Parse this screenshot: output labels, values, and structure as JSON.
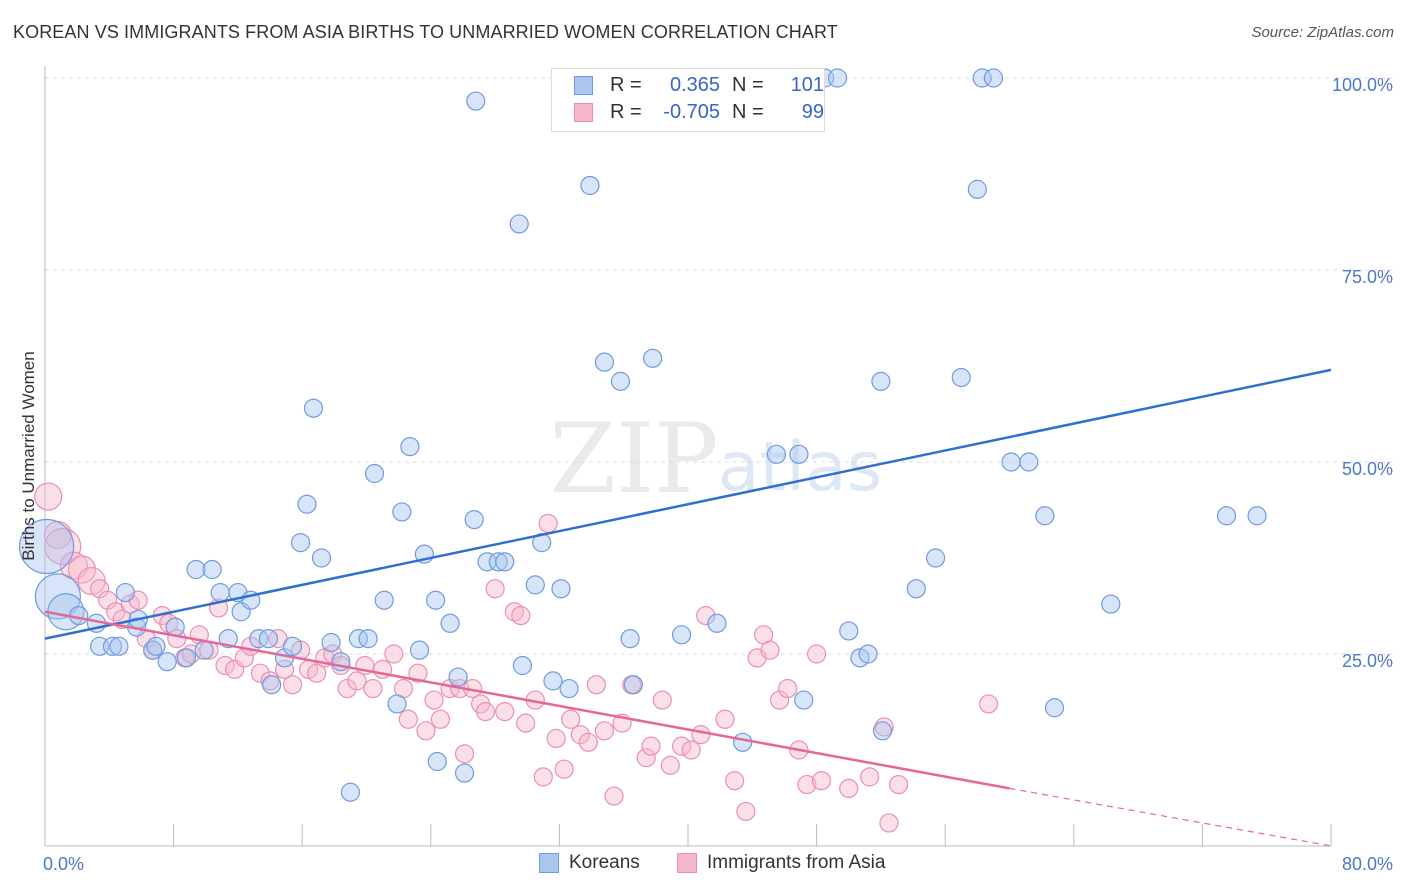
{
  "title": "KOREAN VS IMMIGRANTS FROM ASIA BIRTHS TO UNMARRIED WOMEN CORRELATION CHART",
  "source": "Source: ZipAtlas.com",
  "watermark": {
    "zip": "ZIP",
    "atlas": "atlas"
  },
  "colors": {
    "koreans_fill": "#a9c6f0",
    "koreans_stroke": "#6f9be0",
    "koreans_line": "#2f6fcf",
    "asia_fill": "#f6b9cc",
    "asia_stroke": "#ec8fb0",
    "asia_line": "#e5679a",
    "tick_label": "#4a78c9",
    "grid": "#dddddd"
  },
  "legend_top": [
    {
      "swatch": "koreans",
      "r_label": "R =",
      "r_value": "0.365",
      "n_label": "N =",
      "n_value": "101"
    },
    {
      "swatch": "asia",
      "r_label": "R =",
      "r_value": "-0.705",
      "n_label": "N =",
      "n_value": "99"
    }
  ],
  "legend_bottom": [
    {
      "swatch": "koreans",
      "label": "Koreans"
    },
    {
      "swatch": "asia",
      "label": "Immigrants from Asia"
    }
  ],
  "chart_data": {
    "type": "scatter",
    "title": "KOREAN VS IMMIGRANTS FROM ASIA BIRTHS TO UNMARRIED WOMEN CORRELATION CHART",
    "xlabel": "",
    "ylabel": "Births to Unmarried Women",
    "xlim": [
      0,
      80
    ],
    "ylim": [
      0,
      100
    ],
    "x_tick_labels": [
      "0.0%",
      "80.0%"
    ],
    "y_tick_values": [
      25,
      50,
      75,
      100
    ],
    "y_tick_labels": [
      "25.0%",
      "50.0%",
      "75.0%",
      "100.0%"
    ],
    "grid": "horizontal dashed",
    "legend_placement": "top-center",
    "series": [
      {
        "name": "Koreans",
        "color": "#a9c6f0",
        "trend": {
          "x": [
            0,
            80
          ],
          "y": [
            27.0,
            62.0
          ]
        },
        "points": [
          [
            0.1,
            39.0,
            3
          ],
          [
            0.8,
            32.5,
            2.5
          ],
          [
            1.3,
            30.5,
            2
          ],
          [
            2.1,
            30.0,
            1
          ],
          [
            3.2,
            29.0,
            1
          ],
          [
            3.4,
            26.0,
            1
          ],
          [
            4.2,
            26.0,
            1
          ],
          [
            4.6,
            26.0,
            1
          ],
          [
            5.0,
            33.0,
            1
          ],
          [
            5.7,
            28.5,
            1
          ],
          [
            5.8,
            29.5,
            1
          ],
          [
            6.7,
            25.5,
            1
          ],
          [
            6.9,
            26.0,
            1
          ],
          [
            7.6,
            24.0,
            1
          ],
          [
            8.1,
            28.5,
            1
          ],
          [
            8.8,
            24.5,
            1
          ],
          [
            9.4,
            36.0,
            1
          ],
          [
            9.9,
            25.5,
            1
          ],
          [
            10.4,
            36.0,
            1
          ],
          [
            10.9,
            33.0,
            1
          ],
          [
            11.4,
            27.0,
            1
          ],
          [
            12.0,
            33.0,
            1
          ],
          [
            12.2,
            30.5,
            1
          ],
          [
            12.8,
            32.0,
            1
          ],
          [
            13.3,
            27.0,
            1
          ],
          [
            13.9,
            27.0,
            1
          ],
          [
            14.1,
            21.0,
            1
          ],
          [
            14.9,
            24.5,
            1
          ],
          [
            15.4,
            26.0,
            1
          ],
          [
            15.9,
            39.5,
            1
          ],
          [
            16.3,
            44.5,
            1
          ],
          [
            16.7,
            57.0,
            1
          ],
          [
            17.2,
            37.5,
            1
          ],
          [
            17.8,
            26.5,
            1
          ],
          [
            18.4,
            24.0,
            1
          ],
          [
            19.0,
            7.0,
            1
          ],
          [
            19.5,
            27.0,
            1
          ],
          [
            20.1,
            27.0,
            1
          ],
          [
            20.5,
            48.5,
            1
          ],
          [
            21.1,
            32.0,
            1
          ],
          [
            21.9,
            18.5,
            1
          ],
          [
            22.2,
            43.5,
            1
          ],
          [
            22.7,
            52.0,
            1
          ],
          [
            23.3,
            25.5,
            1
          ],
          [
            23.6,
            38.0,
            1
          ],
          [
            24.3,
            32.0,
            1
          ],
          [
            24.4,
            11.0,
            1
          ],
          [
            25.2,
            29.0,
            1
          ],
          [
            25.7,
            22.0,
            1
          ],
          [
            26.1,
            9.5,
            1
          ],
          [
            26.7,
            42.5,
            1
          ],
          [
            26.8,
            97.0,
            1
          ],
          [
            27.5,
            37.0,
            1
          ],
          [
            28.2,
            37.0,
            1
          ],
          [
            28.6,
            37.0,
            1
          ],
          [
            29.5,
            81.0,
            1
          ],
          [
            29.7,
            23.5,
            1
          ],
          [
            30.5,
            34.0,
            1
          ],
          [
            30.9,
            39.5,
            1
          ],
          [
            31.6,
            21.5,
            1
          ],
          [
            32.1,
            33.5,
            1
          ],
          [
            32.6,
            20.5,
            1
          ],
          [
            33.9,
            86.0,
            1
          ],
          [
            34.8,
            63.0,
            1
          ],
          [
            35.8,
            60.5,
            1
          ],
          [
            36.4,
            27.0,
            1
          ],
          [
            36.6,
            21.0,
            1
          ],
          [
            37.8,
            63.5,
            1
          ],
          [
            38.7,
            100.0,
            1
          ],
          [
            39.6,
            27.5,
            1
          ],
          [
            41.8,
            29.0,
            1
          ],
          [
            43.4,
            13.5,
            1
          ],
          [
            45.5,
            51.0,
            1
          ],
          [
            46.9,
            51.0,
            1
          ],
          [
            47.2,
            19.0,
            1
          ],
          [
            48.5,
            100.0,
            1
          ],
          [
            49.3,
            100.0,
            1
          ],
          [
            50.0,
            28.0,
            1
          ],
          [
            50.7,
            24.5,
            1
          ],
          [
            51.2,
            25.0,
            1
          ],
          [
            52.0,
            60.5,
            1
          ],
          [
            54.2,
            33.5,
            1
          ],
          [
            55.4,
            37.5,
            1
          ],
          [
            57.0,
            61.0,
            1
          ],
          [
            58.0,
            85.5,
            1
          ],
          [
            58.3,
            100.0,
            1
          ],
          [
            59.0,
            100.0,
            1
          ],
          [
            60.1,
            50.0,
            1
          ],
          [
            61.2,
            50.0,
            1
          ],
          [
            62.2,
            43.0,
            1
          ],
          [
            62.8,
            18.0,
            1
          ],
          [
            66.3,
            31.5,
            1
          ],
          [
            73.5,
            43.0,
            1
          ],
          [
            75.4,
            43.0,
            1
          ],
          [
            52.1,
            15.0,
            1
          ],
          [
            36.8,
            100.0,
            1
          ]
        ]
      },
      {
        "name": "Immigrants from Asia",
        "color": "#f6b9cc",
        "trend": {
          "x": [
            0,
            60
          ],
          "y": [
            30.5,
            7.5
          ]
        },
        "trend_dashed": {
          "x": [
            60,
            80
          ],
          "y": [
            7.5,
            0
          ]
        },
        "points": [
          [
            0.2,
            45.5,
            1.5
          ],
          [
            0.8,
            40.5,
            1.5
          ],
          [
            1.1,
            39.0,
            2
          ],
          [
            1.8,
            36.5,
            1.5
          ],
          [
            2.3,
            36.0,
            1.5
          ],
          [
            2.9,
            34.5,
            1.5
          ],
          [
            3.4,
            33.5,
            1
          ],
          [
            3.9,
            32.0,
            1
          ],
          [
            4.4,
            30.5,
            1
          ],
          [
            4.8,
            29.5,
            1
          ],
          [
            5.3,
            31.5,
            1
          ],
          [
            5.8,
            32.0,
            1
          ],
          [
            6.3,
            27.0,
            1
          ],
          [
            6.7,
            25.5,
            1
          ],
          [
            7.3,
            30.0,
            1
          ],
          [
            7.7,
            29.0,
            1
          ],
          [
            8.2,
            27.0,
            1
          ],
          [
            8.7,
            24.5,
            1
          ],
          [
            9.1,
            25.0,
            1
          ],
          [
            9.6,
            27.5,
            1
          ],
          [
            10.2,
            25.5,
            1
          ],
          [
            10.8,
            31.0,
            1
          ],
          [
            11.2,
            23.5,
            1
          ],
          [
            11.8,
            23.0,
            1
          ],
          [
            12.4,
            24.5,
            1
          ],
          [
            12.8,
            26.0,
            1
          ],
          [
            13.4,
            22.5,
            1
          ],
          [
            14.0,
            21.5,
            1
          ],
          [
            14.5,
            27.0,
            1
          ],
          [
            14.9,
            23.0,
            1
          ],
          [
            15.4,
            21.0,
            1
          ],
          [
            15.9,
            25.5,
            1
          ],
          [
            16.4,
            23.0,
            1
          ],
          [
            16.9,
            22.5,
            1
          ],
          [
            17.4,
            24.5,
            1
          ],
          [
            17.9,
            25.0,
            1
          ],
          [
            18.4,
            23.5,
            1
          ],
          [
            18.8,
            20.5,
            1
          ],
          [
            19.4,
            21.5,
            1
          ],
          [
            19.9,
            23.5,
            1
          ],
          [
            20.4,
            20.5,
            1
          ],
          [
            21.0,
            23.0,
            1
          ],
          [
            21.7,
            25.0,
            1
          ],
          [
            22.3,
            20.5,
            1
          ],
          [
            22.6,
            16.5,
            1
          ],
          [
            23.2,
            22.5,
            1
          ],
          [
            23.7,
            15.0,
            1
          ],
          [
            24.2,
            19.0,
            1
          ],
          [
            24.6,
            16.5,
            1
          ],
          [
            25.2,
            20.5,
            1
          ],
          [
            25.8,
            20.5,
            1
          ],
          [
            26.1,
            12.0,
            1
          ],
          [
            26.6,
            20.5,
            1
          ],
          [
            27.1,
            18.5,
            1
          ],
          [
            27.4,
            17.5,
            1
          ],
          [
            28.0,
            33.5,
            1
          ],
          [
            28.6,
            17.5,
            1
          ],
          [
            29.2,
            30.5,
            1
          ],
          [
            29.6,
            30.0,
            1
          ],
          [
            29.9,
            16.0,
            1
          ],
          [
            30.5,
            19.0,
            1
          ],
          [
            31.0,
            9.0,
            1
          ],
          [
            31.3,
            42.0,
            1
          ],
          [
            31.8,
            14.0,
            1
          ],
          [
            32.3,
            10.0,
            1
          ],
          [
            32.7,
            16.5,
            1
          ],
          [
            33.3,
            14.5,
            1
          ],
          [
            33.8,
            13.5,
            1
          ],
          [
            34.3,
            21.0,
            1
          ],
          [
            34.8,
            15.0,
            1
          ],
          [
            35.4,
            6.5,
            1
          ],
          [
            35.9,
            16.0,
            1
          ],
          [
            36.5,
            21.0,
            1
          ],
          [
            37.4,
            11.5,
            1
          ],
          [
            37.7,
            13.0,
            1
          ],
          [
            38.4,
            19.0,
            1
          ],
          [
            38.9,
            10.5,
            1
          ],
          [
            39.6,
            13.0,
            1
          ],
          [
            40.2,
            12.5,
            1
          ],
          [
            40.8,
            14.5,
            1
          ],
          [
            41.1,
            30.0,
            1
          ],
          [
            42.3,
            16.5,
            1
          ],
          [
            42.9,
            8.5,
            1
          ],
          [
            43.6,
            4.5,
            1
          ],
          [
            44.3,
            24.5,
            1
          ],
          [
            44.7,
            27.5,
            1
          ],
          [
            45.1,
            25.5,
            1
          ],
          [
            45.7,
            19.0,
            1
          ],
          [
            46.2,
            20.5,
            1
          ],
          [
            46.9,
            12.5,
            1
          ],
          [
            47.4,
            8.0,
            1
          ],
          [
            48.0,
            25.0,
            1
          ],
          [
            48.3,
            8.5,
            1
          ],
          [
            50.0,
            7.5,
            1
          ],
          [
            51.3,
            9.0,
            1
          ],
          [
            52.2,
            15.5,
            1
          ],
          [
            52.5,
            3.0,
            1
          ],
          [
            53.1,
            8.0,
            1
          ],
          [
            58.7,
            18.5,
            1
          ]
        ]
      }
    ]
  }
}
